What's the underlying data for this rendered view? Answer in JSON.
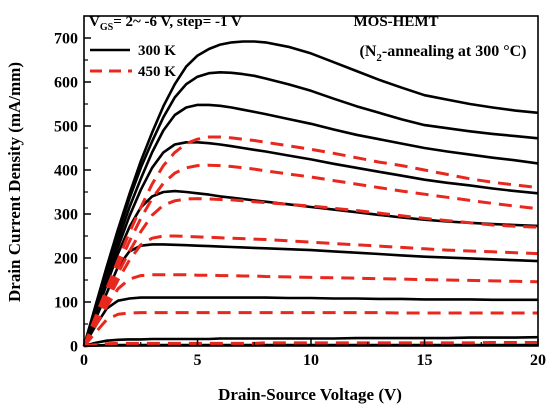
{
  "chart_data": {
    "type": "line",
    "xlabel": "Drain-Source Voltage (V)",
    "ylabel": "Drain Current Density (mA/mm)",
    "xlim": [
      0,
      20
    ],
    "ylim": [
      0,
      750
    ],
    "x_ticks": [
      "0",
      "5",
      "10",
      "15",
      "20"
    ],
    "y_ticks": [
      "0",
      "100",
      "200",
      "300",
      "400",
      "500",
      "600",
      "700"
    ],
    "grid": false,
    "legend_position": "top-left",
    "annotations": {
      "vgs_main": "V",
      "vgs_sub": "GS",
      "vgs_rest": "= 2~ -6 V, step= -1 V",
      "device": "MOS-HEMT",
      "cond_pre": "(N",
      "cond_sub": "2",
      "cond_post": "-annealing at 300 °C)"
    },
    "x": [
      0,
      0.5,
      1,
      1.5,
      2,
      2.5,
      3,
      3.5,
      4,
      4.5,
      5,
      5.5,
      6,
      6.5,
      7,
      7.5,
      8,
      9,
      10,
      11,
      12,
      13,
      14,
      15,
      16,
      17,
      18,
      19,
      20
    ],
    "series": [
      {
        "name": "300 K",
        "style": "solid",
        "color": "#000000",
        "curves": [
          {
            "vgs": 2,
            "values": [
              0,
              90,
              180,
              265,
              345,
              420,
              485,
              545,
              595,
              635,
              660,
              675,
              685,
              690,
              692,
              692,
              690,
              680,
              665,
              645,
              625,
              605,
              587,
              570,
              560,
              550,
              542,
              535,
              530
            ]
          },
          {
            "vgs": 1,
            "values": [
              0,
              85,
              170,
              255,
              335,
              405,
              465,
              520,
              565,
              595,
              612,
              620,
              622,
              621,
              618,
              614,
              608,
              595,
              580,
              562,
              545,
              530,
              515,
              502,
              495,
              488,
              482,
              477,
              472
            ]
          },
          {
            "vgs": 0,
            "values": [
              0,
              80,
              160,
              240,
              315,
              380,
              440,
              490,
              525,
              542,
              548,
              548,
              546,
              542,
              537,
              532,
              527,
              516,
              505,
              492,
              480,
              470,
              460,
              450,
              442,
              435,
              428,
              422,
              415
            ]
          },
          {
            "vgs": -1,
            "values": [
              0,
              75,
              150,
              225,
              295,
              355,
              405,
              440,
              458,
              463,
              463,
              461,
              458,
              454,
              450,
              446,
              442,
              433,
              424,
              414,
              405,
              396,
              387,
              378,
              371,
              365,
              358,
              352,
              347
            ]
          },
          {
            "vgs": -2,
            "values": [
              0,
              70,
              140,
              210,
              270,
              315,
              340,
              350,
              352,
              350,
              347,
              344,
              340,
              337,
              334,
              331,
              328,
              322,
              316,
              310,
              304,
              298,
              292,
              287,
              283,
              280,
              277,
              275,
              273
            ]
          },
          {
            "vgs": -3,
            "values": [
              0,
              60,
              120,
              180,
              215,
              228,
              231,
              231,
              230,
              229,
              228,
              227,
              226,
              225,
              224,
              223,
              222,
              220,
              218,
              215,
              212,
              209,
              206,
              203,
              201,
              199,
              197,
              195,
              193
            ]
          },
          {
            "vgs": -4,
            "values": [
              0,
              45,
              85,
              103,
              108,
              110,
              110,
              110,
              110,
              110,
              110,
              110,
              110,
              110,
              110,
              110,
              110,
              109,
              109,
              108,
              108,
              107,
              107,
              106,
              106,
              106,
              105,
              105,
              105
            ]
          },
          {
            "vgs": -5,
            "values": [
              0,
              7,
              12,
              14,
              15,
              15,
              16,
              16,
              16,
              16,
              16,
              16,
              17,
              17,
              17,
              17,
              17,
              17,
              17,
              17,
              18,
              18,
              18,
              18,
              18,
              19,
              19,
              19,
              20
            ]
          },
          {
            "vgs": -6,
            "values": [
              0,
              1,
              2,
              2,
              2,
              2,
              2,
              2,
              2,
              2,
              2,
              2,
              2,
              2,
              2,
              2,
              2,
              2,
              2,
              2,
              2,
              2,
              2,
              2,
              2,
              2,
              2,
              2,
              2
            ]
          }
        ]
      },
      {
        "name": "450 K",
        "style": "dashed",
        "color": "#e8281e",
        "curves": [
          {
            "vgs": 2,
            "values": [
              0,
              65,
              130,
              195,
              258,
              315,
              368,
              410,
              440,
              460,
              470,
              475,
              475,
              473,
              470,
              467,
              463,
              455,
              447,
              438,
              428,
              418,
              410,
              400,
              390,
              380,
              372,
              366,
              360
            ]
          },
          {
            "vgs": 1,
            "values": [
              0,
              60,
              120,
              180,
              238,
              290,
              335,
              370,
              393,
              405,
              410,
              411,
              410,
              408,
              405,
              402,
              398,
              391,
              384,
              376,
              368,
              360,
              352,
              345,
              338,
              331,
              324,
              318,
              312
            ]
          },
          {
            "vgs": 0,
            "values": [
              0,
              55,
              110,
              165,
              215,
              260,
              297,
              320,
              330,
              334,
              335,
              334,
              333,
              332,
              330,
              328,
              326,
              322,
              318,
              313,
              308,
              302,
              296,
              290,
              285,
              280,
              275,
              272,
              270
            ]
          },
          {
            "vgs": -1,
            "values": [
              0,
              50,
              100,
              150,
              195,
              230,
              245,
              250,
              250,
              249,
              248,
              247,
              246,
              245,
              244,
              243,
              242,
              239,
              236,
              233,
              230,
              227,
              224,
              221,
              218,
              216,
              214,
              212,
              210
            ]
          },
          {
            "vgs": -2,
            "values": [
              0,
              45,
              90,
              130,
              152,
              160,
              162,
              162,
              162,
              162,
              161,
              161,
              160,
              160,
              159,
              159,
              158,
              157,
              156,
              155,
              154,
              153,
              152,
              151,
              150,
              149,
              148,
              147,
              146
            ]
          },
          {
            "vgs": -3,
            "values": [
              0,
              30,
              60,
              72,
              75,
              76,
              76,
              76,
              76,
              76,
              76,
              76,
              76,
              76,
              76,
              76,
              76,
              76,
              76,
              76,
              76,
              76,
              75,
              75,
              75,
              75,
              75,
              75,
              75
            ]
          },
          {
            "vgs": -4,
            "values": [
              0,
              3,
              5,
              6,
              6,
              6,
              6,
              6,
              6,
              6,
              6,
              6,
              6,
              6,
              6,
              6,
              7,
              7,
              7,
              7,
              7,
              7,
              7,
              7,
              7,
              7,
              8,
              8,
              8
            ]
          }
        ]
      }
    ]
  }
}
